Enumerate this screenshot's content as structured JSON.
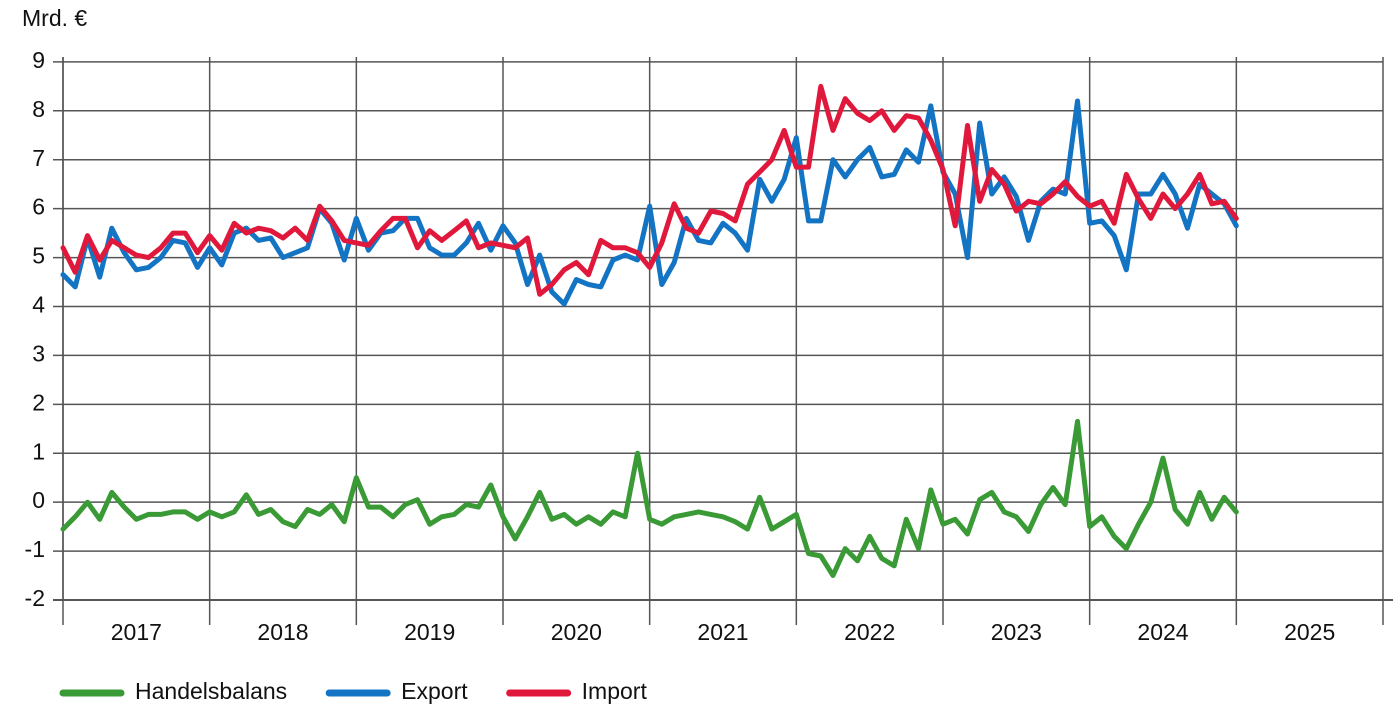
{
  "chart_data": {
    "type": "line",
    "ylabel": "Mrd. €",
    "xlim": [
      2017,
      2026
    ],
    "xticks": [
      2017,
      2018,
      2019,
      2020,
      2021,
      2022,
      2023,
      2024,
      2025
    ],
    "ylim": [
      -2,
      9.1
    ],
    "yticks": [
      -2,
      -1,
      0,
      1,
      2,
      3,
      4,
      5,
      6,
      7,
      8,
      9
    ],
    "grid": true,
    "legend": "bottom",
    "x": [
      2017,
      2017.083,
      2017.167,
      2017.25,
      2017.333,
      2017.417,
      2017.5,
      2017.583,
      2017.667,
      2017.75,
      2017.833,
      2017.917,
      2018,
      2018.083,
      2018.167,
      2018.25,
      2018.333,
      2018.417,
      2018.5,
      2018.583,
      2018.667,
      2018.75,
      2018.833,
      2018.917,
      2019,
      2019.083,
      2019.167,
      2019.25,
      2019.333,
      2019.417,
      2019.5,
      2019.583,
      2019.667,
      2019.75,
      2019.833,
      2019.917,
      2020,
      2020.083,
      2020.167,
      2020.25,
      2020.333,
      2020.417,
      2020.5,
      2020.583,
      2020.667,
      2020.75,
      2020.833,
      2020.917,
      2021,
      2021.083,
      2021.167,
      2021.25,
      2021.333,
      2021.417,
      2021.5,
      2021.583,
      2021.667,
      2021.75,
      2021.833,
      2021.917,
      2022,
      2022.083,
      2022.167,
      2022.25,
      2022.333,
      2022.417,
      2022.5,
      2022.583,
      2022.667,
      2022.75,
      2022.833,
      2022.917,
      2023,
      2023.083,
      2023.167,
      2023.25,
      2023.333,
      2023.417,
      2023.5,
      2023.583,
      2023.667,
      2023.75,
      2023.833,
      2023.917,
      2024,
      2024.083,
      2024.167,
      2024.25,
      2024.333,
      2024.417,
      2024.5,
      2024.583,
      2024.667,
      2024.75,
      2024.833,
      2024.917,
      2025
    ],
    "series": [
      {
        "name": "Handelsbalans",
        "color": "#3a9a35",
        "values": [
          -0.55,
          -0.3,
          0.0,
          -0.35,
          0.2,
          -0.1,
          -0.35,
          -0.25,
          -0.25,
          -0.2,
          -0.2,
          -0.35,
          -0.2,
          -0.3,
          -0.2,
          0.15,
          -0.25,
          -0.15,
          -0.4,
          -0.5,
          -0.15,
          -0.25,
          -0.05,
          -0.4,
          0.5,
          -0.1,
          -0.1,
          -0.3,
          -0.05,
          0.05,
          -0.45,
          -0.3,
          -0.25,
          -0.05,
          -0.1,
          0.35,
          -0.3,
          -0.75,
          -0.3,
          0.2,
          -0.35,
          -0.25,
          -0.45,
          -0.3,
          -0.45,
          -0.2,
          -0.3,
          1.0,
          -0.35,
          -0.45,
          -0.3,
          -0.25,
          -0.2,
          -0.25,
          -0.3,
          -0.4,
          -0.55,
          0.1,
          -0.55,
          -0.4,
          -0.25,
          -1.05,
          -1.1,
          -1.5,
          -0.95,
          -1.2,
          -0.7,
          -1.15,
          -1.3,
          -0.35,
          -0.95,
          0.25,
          -0.45,
          -0.35,
          -0.65,
          0.05,
          0.2,
          -0.2,
          -0.3,
          -0.6,
          -0.05,
          0.3,
          -0.05,
          1.65,
          -0.5,
          -0.3,
          -0.7,
          -0.95,
          -0.45,
          0.0,
          0.9,
          -0.15,
          -0.45,
          0.2,
          -0.35,
          0.1,
          -0.2
        ]
      },
      {
        "name": "Export",
        "color": "#1474c4",
        "values": [
          4.65,
          4.4,
          5.4,
          4.6,
          5.6,
          5.1,
          4.75,
          4.8,
          5.0,
          5.35,
          5.3,
          4.8,
          5.2,
          4.85,
          5.5,
          5.6,
          5.35,
          5.4,
          5.0,
          5.1,
          5.2,
          6.0,
          5.7,
          4.95,
          5.8,
          5.15,
          5.5,
          5.55,
          5.8,
          5.8,
          5.2,
          5.05,
          5.05,
          5.3,
          5.7,
          5.15,
          5.65,
          5.3,
          4.45,
          5.05,
          4.3,
          4.05,
          4.55,
          4.45,
          4.4,
          4.95,
          5.05,
          4.95,
          6.05,
          4.45,
          4.9,
          5.8,
          5.35,
          5.3,
          5.7,
          5.5,
          5.15,
          6.6,
          6.15,
          6.6,
          7.45,
          5.75,
          5.75,
          7.0,
          6.65,
          7.0,
          7.25,
          6.65,
          6.7,
          7.2,
          6.95,
          8.1,
          6.75,
          6.3,
          5.0,
          7.75,
          6.3,
          6.65,
          6.25,
          5.35,
          6.15,
          6.4,
          6.3,
          8.2,
          5.7,
          5.75,
          5.45,
          4.75,
          6.3,
          6.3,
          6.7,
          6.3,
          5.6,
          6.5,
          6.3,
          6.1,
          5.65
        ]
      },
      {
        "name": "Import",
        "color": "#e0193c",
        "values": [
          5.2,
          4.7,
          5.45,
          4.95,
          5.35,
          5.2,
          5.05,
          5.0,
          5.2,
          5.5,
          5.5,
          5.1,
          5.45,
          5.15,
          5.7,
          5.5,
          5.6,
          5.55,
          5.4,
          5.6,
          5.35,
          6.05,
          5.75,
          5.35,
          5.3,
          5.25,
          5.55,
          5.8,
          5.8,
          5.2,
          5.55,
          5.35,
          5.55,
          5.75,
          5.2,
          5.3,
          5.25,
          5.2,
          5.4,
          4.25,
          4.45,
          4.75,
          4.9,
          4.65,
          5.35,
          5.2,
          5.2,
          5.1,
          4.8,
          5.3,
          6.1,
          5.6,
          5.5,
          5.95,
          5.9,
          5.75,
          6.5,
          6.75,
          7.0,
          7.6,
          6.85,
          6.85,
          8.5,
          7.6,
          8.25,
          7.95,
          7.8,
          8.0,
          7.6,
          7.9,
          7.85,
          7.4,
          6.8,
          5.65,
          7.7,
          6.15,
          6.8,
          6.5,
          5.95,
          6.15,
          6.1,
          6.3,
          6.55,
          6.25,
          6.05,
          6.15,
          5.7,
          6.7,
          6.2,
          5.8,
          6.3,
          6.0,
          6.3,
          6.7,
          6.1,
          6.15,
          5.8
        ]
      }
    ]
  }
}
